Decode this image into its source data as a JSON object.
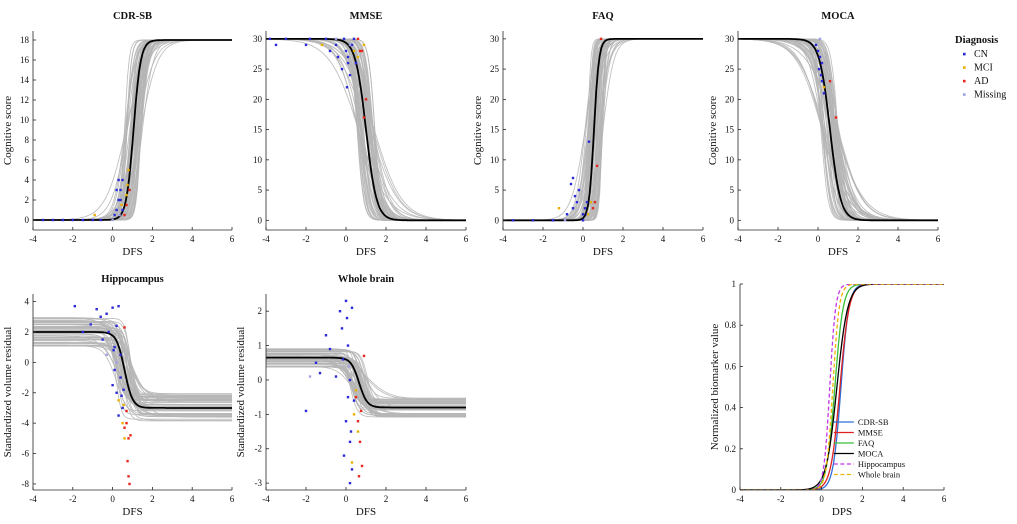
{
  "legend": {
    "title": "Diagnosis",
    "entries": [
      {
        "label": "CN",
        "color": "#2a2ad8"
      },
      {
        "label": "MCI",
        "color": "#e8b100"
      },
      {
        "label": "AD",
        "color": "#e8271c"
      },
      {
        "label": "Missing",
        "color": "#9f9fe8"
      }
    ]
  },
  "colors": {
    "individual_curve": "#b5b5b5",
    "mean_curve": "#000000",
    "axis": "#262626"
  },
  "chart_data": [
    {
      "id": "cdrsb",
      "type": "scatter",
      "title": "CDR-SB",
      "xlabel": "DFS",
      "ylabel": "Cognitive score",
      "xlim": [
        -4,
        6
      ],
      "ylim": [
        -1,
        18.9
      ],
      "xticks": [
        -4,
        -2,
        0,
        2,
        4,
        6
      ],
      "yticks": [
        0,
        2,
        4,
        6,
        8,
        10,
        12,
        14,
        16,
        18
      ],
      "mean_curve": {
        "lower": 0,
        "upper": 18,
        "midpoint": 1.05,
        "steepness": 5.5
      },
      "points": {
        "CN": [
          [
            -3.5,
            0
          ],
          [
            -3,
            0
          ],
          [
            -2.5,
            0
          ],
          [
            -2,
            0
          ],
          [
            -1.5,
            0
          ],
          [
            -1,
            0
          ],
          [
            -0.6,
            0
          ],
          [
            0.1,
            0.5
          ],
          [
            0.2,
            1
          ],
          [
            0.3,
            2
          ],
          [
            0.2,
            3
          ],
          [
            0.3,
            4
          ],
          [
            0.4,
            3
          ],
          [
            0.5,
            1
          ],
          [
            0.4,
            2
          ],
          [
            0.5,
            4
          ]
        ],
        "MCI": [
          [
            -0.9,
            0.5
          ],
          [
            0.45,
            1.5
          ],
          [
            0.7,
            2.5
          ],
          [
            0.8,
            5
          ],
          [
            0.75,
            3.5
          ]
        ],
        "AD": [
          [
            0.6,
            0.5
          ],
          [
            0.7,
            1.5
          ],
          [
            0.85,
            3
          ]
        ],
        "Missing": [
          [
            0,
            0
          ],
          [
            0.35,
            0.5
          ]
        ]
      }
    },
    {
      "id": "mmse",
      "type": "scatter",
      "title": "MMSE",
      "xlabel": "DFS",
      "ylabel": "",
      "xlim": [
        -4,
        6
      ],
      "ylim": [
        -1.6,
        31.3
      ],
      "xticks": [
        -4,
        -2,
        0,
        2,
        4,
        6
      ],
      "yticks": [
        0,
        5,
        10,
        15,
        20,
        25,
        30
      ],
      "mean_curve": {
        "lower": 0,
        "upper": 30,
        "midpoint": 1.0,
        "steepness": -3.8
      },
      "points": {
        "CN": [
          [
            -3.8,
            30
          ],
          [
            -3.5,
            29
          ],
          [
            -3,
            30
          ],
          [
            -2,
            29
          ],
          [
            -1.8,
            30
          ],
          [
            -1,
            30
          ],
          [
            -0.8,
            28
          ],
          [
            -0.5,
            29
          ],
          [
            -0.4,
            27
          ],
          [
            -0.2,
            25
          ],
          [
            -0.1,
            30
          ],
          [
            0,
            28
          ],
          [
            0.1,
            27
          ],
          [
            0.1,
            26
          ],
          [
            0.2,
            24
          ],
          [
            0.3,
            29
          ],
          [
            0.4,
            30
          ],
          [
            0.5,
            26
          ],
          [
            0.05,
            22
          ]
        ],
        "MCI": [
          [
            -1.2,
            29
          ],
          [
            0.4,
            28
          ],
          [
            0.6,
            27
          ],
          [
            0.9,
            29
          ]
        ],
        "AD": [
          [
            0.6,
            30
          ],
          [
            0.7,
            28
          ],
          [
            0.8,
            28
          ],
          [
            1.0,
            20
          ],
          [
            0.9,
            17
          ]
        ],
        "Missing": [
          [
            -0.5,
            30
          ],
          [
            0.2,
            29
          ]
        ]
      }
    },
    {
      "id": "faq",
      "type": "scatter",
      "title": "FAQ",
      "xlabel": "DFS",
      "ylabel": "Cognitive score",
      "xlim": [
        -4,
        6
      ],
      "ylim": [
        -1.6,
        31.3
      ],
      "xticks": [
        -4,
        -2,
        0,
        2,
        4,
        6
      ],
      "yticks": [
        0,
        5,
        10,
        15,
        20,
        25,
        30
      ],
      "mean_curve": {
        "lower": 0,
        "upper": 30,
        "midpoint": 0.55,
        "steepness": 8
      },
      "points": {
        "CN": [
          [
            -3.5,
            0
          ],
          [
            -2.5,
            0
          ],
          [
            -1.5,
            0
          ],
          [
            -0.8,
            1
          ],
          [
            -0.5,
            2
          ],
          [
            -0.3,
            3
          ],
          [
            -0.4,
            4
          ],
          [
            -0.2,
            5
          ],
          [
            -0.6,
            6
          ],
          [
            -0.5,
            7
          ],
          [
            0,
            1
          ],
          [
            0.1,
            2
          ],
          [
            0.2,
            3
          ],
          [
            0.3,
            13
          ],
          [
            0.2,
            1
          ],
          [
            0,
            0
          ]
        ],
        "MCI": [
          [
            -1.2,
            2
          ],
          [
            0.25,
            1
          ],
          [
            0.4,
            3
          ]
        ],
        "AD": [
          [
            0.5,
            2
          ],
          [
            0.6,
            3
          ],
          [
            0.7,
            9
          ],
          [
            0.9,
            30
          ]
        ],
        "Missing": [
          [
            -0.9,
            0
          ]
        ]
      }
    },
    {
      "id": "moca",
      "type": "scatter",
      "title": "MOCA",
      "xlabel": "DFS",
      "ylabel": "Cognitive score",
      "xlim": [
        -4,
        6
      ],
      "ylim": [
        -1.6,
        31.3
      ],
      "xticks": [
        -4,
        -2,
        0,
        2,
        4,
        6
      ],
      "yticks": [
        0,
        5,
        10,
        15,
        20,
        25,
        30
      ],
      "mean_curve": {
        "lower": 0,
        "upper": 30,
        "midpoint": 0.6,
        "steepness": -3.8
      },
      "points": {
        "CN": [
          [
            -0.1,
            29
          ],
          [
            0,
            28
          ],
          [
            0.1,
            27
          ],
          [
            0.2,
            26
          ],
          [
            0.05,
            25
          ],
          [
            0.15,
            24
          ],
          [
            0.2,
            23
          ],
          [
            0.3,
            21
          ]
        ],
        "MCI": [
          [
            0.3,
            22
          ]
        ],
        "AD": [
          [
            0.6,
            23
          ],
          [
            0.9,
            17
          ]
        ],
        "Missing": [
          [
            0.1,
            30
          ]
        ]
      }
    },
    {
      "id": "hippocampus",
      "type": "scatter",
      "title": "Hippocampus",
      "xlabel": "DFS",
      "ylabel": "Standardized volume residual",
      "xlim": [
        -4,
        6
      ],
      "ylim": [
        -8.4,
        4.5
      ],
      "xticks": [
        -4,
        -2,
        0,
        2,
        4,
        6
      ],
      "yticks": [
        -8,
        -6,
        -4,
        -2,
        0,
        2,
        4
      ],
      "mean_curve": {
        "lower": -3.0,
        "upper": 2.0,
        "midpoint": 0.6,
        "steepness": -5
      },
      "points": {
        "CN": [
          [
            -1.9,
            3.7
          ],
          [
            -1.5,
            2
          ],
          [
            -1.1,
            2.5
          ],
          [
            -0.8,
            3.5
          ],
          [
            -0.6,
            3
          ],
          [
            -0.5,
            1.5
          ],
          [
            -0.3,
            3.2
          ],
          [
            -0.2,
            2
          ],
          [
            0,
            3.6
          ],
          [
            0.1,
            1
          ],
          [
            0.2,
            2.4
          ],
          [
            0.3,
            3.7
          ],
          [
            0.4,
            0.5
          ],
          [
            0.1,
            -0.5
          ],
          [
            0,
            -1.5
          ],
          [
            0.2,
            -2
          ],
          [
            0.4,
            -1
          ],
          [
            0.5,
            -3
          ],
          [
            0.3,
            -3.5
          ],
          [
            0.45,
            -2.2
          ],
          [
            0.55,
            -1.8
          ],
          [
            0.05,
            0.8
          ]
        ],
        "MCI": [
          [
            0.3,
            -2.5
          ],
          [
            0.5,
            -4
          ],
          [
            0.6,
            -5
          ],
          [
            0.55,
            -2.8
          ]
        ],
        "AD": [
          [
            0.6,
            -4.3
          ],
          [
            0.7,
            -4
          ],
          [
            0.8,
            -5
          ],
          [
            0.75,
            -6.5
          ],
          [
            0.8,
            -7.5
          ],
          [
            0.85,
            -8
          ],
          [
            0.7,
            -3.2
          ],
          [
            0.9,
            -4.8
          ],
          [
            0.6,
            2.3
          ]
        ],
        "Missing": [
          [
            -0.3,
            0.5
          ],
          [
            0.2,
            0
          ]
        ]
      }
    },
    {
      "id": "wholebrain",
      "type": "scatter",
      "title": "Whole brain",
      "xlabel": "DFS",
      "ylabel": "Standardized volume residual",
      "xlim": [
        -4,
        6
      ],
      "ylim": [
        -3.2,
        2.5
      ],
      "xticks": [
        -4,
        -2,
        0,
        2,
        4,
        6
      ],
      "yticks": [
        -3,
        -2,
        -1,
        0,
        1,
        2
      ],
      "mean_curve": {
        "lower": -0.8,
        "upper": 0.65,
        "midpoint": 0.65,
        "steepness": -5
      },
      "points": {
        "CN": [
          [
            -2,
            -0.9
          ],
          [
            -1.5,
            0.5
          ],
          [
            -1.3,
            0.2
          ],
          [
            -1,
            1.3
          ],
          [
            -0.8,
            0.9
          ],
          [
            -0.5,
            0.1
          ],
          [
            -0.3,
            2
          ],
          [
            -0.2,
            1.5
          ],
          [
            0,
            2.3
          ],
          [
            0.1,
            1
          ],
          [
            0.2,
            0
          ],
          [
            0.3,
            2.1
          ],
          [
            0.1,
            -0.5
          ],
          [
            0,
            -1.2
          ],
          [
            0.2,
            -1.8
          ],
          [
            -0.1,
            -2.2
          ],
          [
            0.3,
            -2.6
          ],
          [
            0.2,
            -3.0
          ],
          [
            0.4,
            -0.6
          ],
          [
            0.05,
            1.8
          ],
          [
            -0.15,
            0.6
          ],
          [
            0.25,
            -1.5
          ]
        ],
        "MCI": [
          [
            0.4,
            -1
          ],
          [
            0.5,
            -0.3
          ],
          [
            0.3,
            -2.4
          ],
          [
            0.6,
            -1.5
          ]
        ],
        "AD": [
          [
            0.5,
            -0.5
          ],
          [
            0.6,
            -1.2
          ],
          [
            0.7,
            -1.8
          ],
          [
            0.8,
            -2.5
          ],
          [
            0.9,
            0.7
          ],
          [
            0.75,
            -0.9
          ],
          [
            0.65,
            -2.8
          ]
        ],
        "Missing": [
          [
            -1.8,
            0.1
          ],
          [
            0.15,
            0.4
          ]
        ]
      }
    },
    {
      "id": "normalized",
      "type": "line",
      "title": "",
      "xlabel": "DPS",
      "ylabel": "Normalized biomarker value",
      "xlim": [
        -4,
        6
      ],
      "ylim": [
        0,
        1
      ],
      "xticks": [
        -4,
        -2,
        0,
        2,
        4,
        6
      ],
      "yticks": [
        0,
        0.2,
        0.4,
        0.6,
        0.8,
        1
      ],
      "series": [
        {
          "name": "CDR-SB",
          "color": "#2c6fd8",
          "dash": "",
          "midpoint": 0.95,
          "steepness": 5.2
        },
        {
          "name": "MMSE",
          "color": "#e02020",
          "dash": "",
          "midpoint": 0.9,
          "steepness": 4.5
        },
        {
          "name": "FAQ",
          "color": "#3bbf3b",
          "dash": "",
          "midpoint": 0.65,
          "steepness": 5
        },
        {
          "name": "MOCA",
          "color": "#000000",
          "dash": "",
          "midpoint": 0.75,
          "steepness": 3.8
        },
        {
          "name": "Hippocampus",
          "color": "#c236e6",
          "dash": "dashed",
          "midpoint": 0.4,
          "steepness": 7
        },
        {
          "name": "Whole brain",
          "color": "#f0b400",
          "dash": "dashed",
          "midpoint": 0.55,
          "steepness": 6.5
        }
      ]
    }
  ]
}
